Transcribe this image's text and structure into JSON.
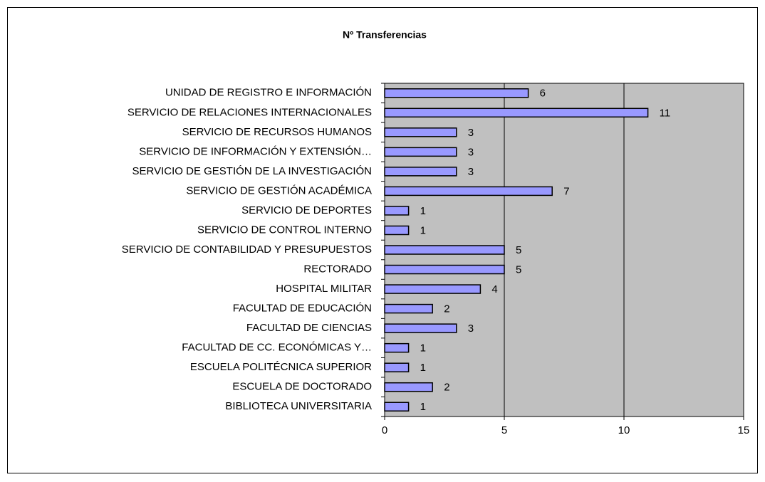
{
  "chart_data": {
    "type": "bar",
    "orientation": "horizontal",
    "title": "Nº Transferencias",
    "categories": [
      "UNIDAD DE REGISTRO E INFORMACIÓN",
      "SERVICIO DE RELACIONES INTERNACIONALES",
      "SERVICIO DE RECURSOS HUMANOS",
      "SERVICIO DE INFORMACIÓN Y EXTENSIÓN…",
      "SERVICIO DE GESTIÓN DE LA INVESTIGACIÓN",
      "SERVICIO DE GESTIÓN ACADÉMICA",
      "SERVICIO DE DEPORTES",
      "SERVICIO DE CONTROL INTERNO",
      "SERVICIO DE CONTABILIDAD Y PRESUPUESTOS",
      "RECTORADO",
      "HOSPITAL MILITAR",
      "FACULTAD DE EDUCACIÓN",
      "FACULTAD DE CIENCIAS",
      "FACULTAD DE CC. ECONÓMICAS Y…",
      "ESCUELA POLITÉCNICA SUPERIOR",
      "ESCUELA DE DOCTORADO",
      "BIBLIOTECA UNIVERSITARIA"
    ],
    "values": [
      6,
      11,
      3,
      3,
      3,
      7,
      1,
      1,
      5,
      5,
      4,
      2,
      3,
      1,
      1,
      2,
      1
    ],
    "color": "#9999ff",
    "xlim": [
      0,
      15
    ],
    "xticks": [
      0,
      5,
      10,
      15
    ],
    "grid": true,
    "show_value_labels": true
  }
}
